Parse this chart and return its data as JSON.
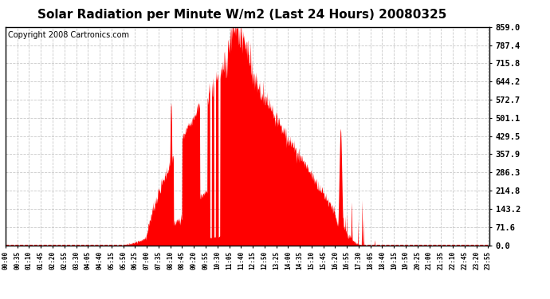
{
  "title": "Solar Radiation per Minute W/m2 (Last 24 Hours) 20080325",
  "copyright": "Copyright 2008 Cartronics.com",
  "y_ticks": [
    0.0,
    71.6,
    143.2,
    214.8,
    286.3,
    357.9,
    429.5,
    501.1,
    572.7,
    644.2,
    715.8,
    787.4,
    859.0
  ],
  "y_max": 859.0,
  "y_min": 0.0,
  "fill_color": "red",
  "line_color": "red",
  "dashed_line_color": "red",
  "grid_color": "#bbbbbb",
  "bg_color": "white",
  "title_fontsize": 11,
  "copyright_fontsize": 7,
  "tick_fontsize": 7.5,
  "x_tick_interval": 35,
  "n_points": 1440
}
